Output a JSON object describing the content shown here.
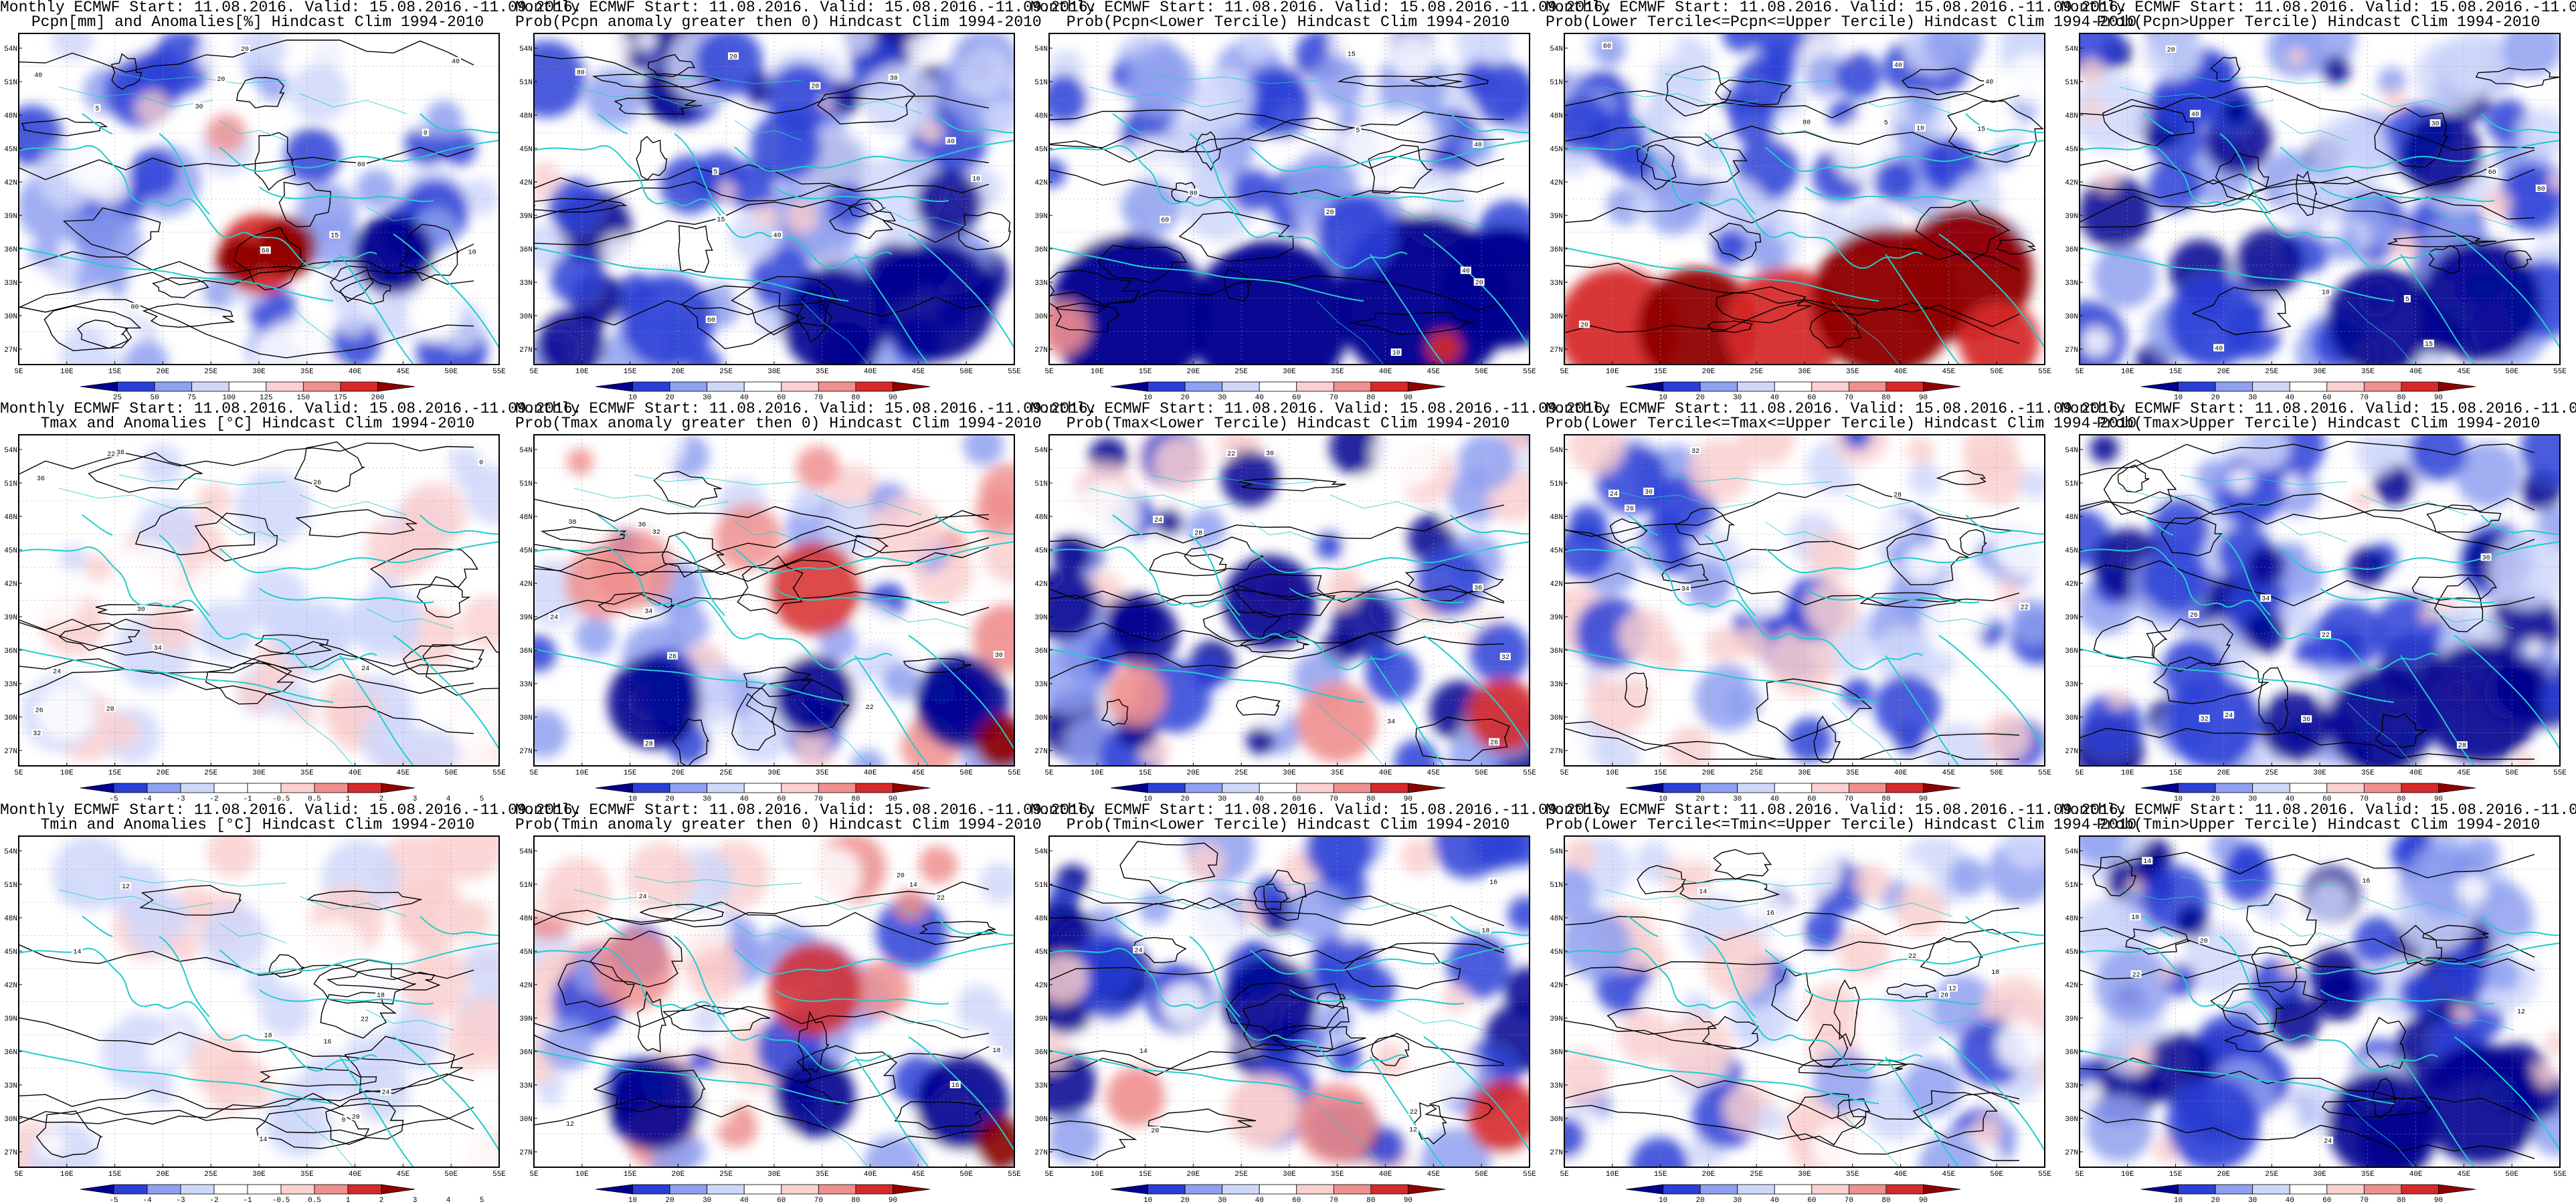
{
  "colors": {
    "blue_deep": "#00008f",
    "blue_mid": "#2a3fd6",
    "blue_light": "#8fa0f0",
    "blue_pale": "#d0d8fa",
    "white": "#ffffff",
    "red_pale": "#fad0d0",
    "red_light": "#f08f8f",
    "red_mid": "#d62a2a",
    "red_deep": "#8f0000",
    "coastline": "#22cccc",
    "contour": "#000000"
  },
  "axes": {
    "lon_ticks": [
      "5E",
      "10E",
      "15E",
      "20E",
      "25E",
      "30E",
      "35E",
      "40E",
      "45E",
      "50E",
      "55E"
    ],
    "lat_ticks": [
      "54N",
      "51N",
      "48N",
      "45N",
      "42N",
      "39N",
      "36N",
      "33N",
      "30N",
      "27N"
    ]
  },
  "colorbars": {
    "pcpn_anom": {
      "labels": [
        "25",
        "50",
        "75",
        "100",
        "125",
        "150",
        "175",
        "200"
      ]
    },
    "temp_anom": {
      "labels": [
        "-5",
        "-4",
        "-3",
        "-2",
        "-1",
        "-0.5",
        "0.5",
        "1",
        "2",
        "3",
        "4",
        "5"
      ]
    },
    "prob": {
      "labels": [
        "10",
        "20",
        "30",
        "40",
        "60",
        "70",
        "80",
        "90"
      ]
    }
  },
  "panels": [
    {
      "title1": "Monthly ECMWF Start: 11.08.2016. Valid: 15.08.2016.-11.09.2016.",
      "title2": "Pcpn[mm] and Anomalies[%] Hindcast Clim 1994-2010",
      "cbar": "pcpn_anom",
      "field": "pcpn_anom",
      "contour_labels": [
        "60",
        "20",
        "40",
        "40",
        "80",
        "10",
        "5",
        "80",
        "15",
        "20",
        "30",
        "0"
      ]
    },
    {
      "title1": "Monthly ECMWF Start: 11.08.2016. Valid: 15.08.2016.-11.09.2016.",
      "title2": "Prob(Pcpn anomaly greater then 0) Hindcast Clim 1994-2010",
      "cbar": "prob",
      "field": "prob_blue",
      "contour_labels": [
        "60",
        "20",
        "40",
        "40",
        "80",
        "10",
        "5",
        "15",
        "20",
        "30"
      ]
    },
    {
      "title1": "Monthly ECMWF Start: 11.08.2016. Valid: 15.08.2016.-11.09.2016.",
      "title2": "Prob(Pcpn<Lower Tercile) Hindcast Clim 1994-2010",
      "cbar": "prob",
      "field": "prob_blue_south",
      "contour_labels": [
        "60",
        "20",
        "40",
        "40",
        "80",
        "10",
        "5",
        "15",
        "20"
      ]
    },
    {
      "title1": "Monthly ECMWF Start: 11.08.2016. Valid: 15.08.2016.-11.09.2016.",
      "title2": "Prob(Lower Tercile<=Pcpn<=Upper Tercile) Hindcast Clim 1994-2010",
      "cbar": "prob",
      "field": "prob_red_south",
      "contour_labels": [
        "60",
        "20",
        "40",
        "40",
        "80",
        "10",
        "5",
        "15"
      ]
    },
    {
      "title1": "Monthly ECMWF Start: 11.08.2016. Valid: 15.08.2016.-11.09.2016.",
      "title2": "Prob(Pcpn>Upper Tercile) Hindcast Clim 1994-2010",
      "cbar": "prob",
      "field": "prob_blue",
      "contour_labels": [
        "60",
        "20",
        "40",
        "40",
        "80",
        "10",
        "5",
        "15",
        "30"
      ]
    },
    {
      "title1": "Monthly ECMWF Start: 11.08.2016. Valid: 15.08.2016.-11.09.2016.",
      "title2": "Tmax and Anomalies [°C] Hindcast Clim 1994-2010",
      "cbar": "temp_anom",
      "field": "temp_light",
      "contour_labels": [
        "22",
        "24",
        "26",
        "28",
        "30",
        "32",
        "34",
        "36",
        "38",
        "24",
        "26",
        "0"
      ]
    },
    {
      "title1": "Monthly ECMWF Start: 11.08.2016. Valid: 15.08.2016.-11.09.2016.",
      "title2": "Prob(Tmax anomaly greater then 0) Hindcast Clim 1994-2010",
      "cbar": "prob",
      "field": "prob_mixed",
      "contour_labels": [
        "22",
        "24",
        "26",
        "28",
        "30",
        "32",
        "34",
        "36",
        "38"
      ]
    },
    {
      "title1": "Monthly ECMWF Start: 11.08.2016. Valid: 15.08.2016.-11.09.2016.",
      "title2": "Prob(Tmax<Lower Tercile) Hindcast Clim 1994-2010",
      "cbar": "prob",
      "field": "prob_mixed_dark",
      "contour_labels": [
        "22",
        "24",
        "26",
        "28",
        "30",
        "32",
        "34",
        "36"
      ]
    },
    {
      "title1": "Monthly ECMWF Start: 11.08.2016. Valid: 15.08.2016.-11.09.2016.",
      "title2": "Prob(Lower Tercile<=Tmax<=Upper Tercile) Hindcast Clim 1994-2010",
      "cbar": "prob",
      "field": "prob_light",
      "contour_labels": [
        "22",
        "24",
        "26",
        "28",
        "30",
        "32",
        "34"
      ]
    },
    {
      "title1": "Monthly ECMWF Start: 11.08.2016. Valid: 15.08.2016.-11.09.2016.",
      "title2": "Prob(Tmax>Upper Tercile) Hindcast Clim 1994-2010",
      "cbar": "prob",
      "field": "prob_blue",
      "contour_labels": [
        "22",
        "24",
        "26",
        "28",
        "30",
        "32",
        "34",
        "36"
      ]
    },
    {
      "title1": "Monthly ECMWF Start: 11.08.2016. Valid: 15.08.2016.-11.09.2016.",
      "title2": "Tmin and Anomalies [°C] Hindcast Clim 1994-2010",
      "cbar": "temp_anom",
      "field": "temp_light",
      "contour_labels": [
        "12",
        "14",
        "16",
        "18",
        "20",
        "22",
        "24",
        "18",
        "14",
        "0"
      ]
    },
    {
      "title1": "Monthly ECMWF Start: 11.08.2016. Valid: 15.08.2016.-11.09.2016.",
      "title2": "Prob(Tmin anomaly greater then 0) Hindcast Clim 1994-2010",
      "cbar": "prob",
      "field": "prob_mixed",
      "contour_labels": [
        "12",
        "14",
        "16",
        "18",
        "20",
        "22",
        "24"
      ]
    },
    {
      "title1": "Monthly ECMWF Start: 11.08.2016. Valid: 15.08.2016.-11.09.2016.",
      "title2": "Prob(Tmin<Lower Tercile) Hindcast Clim 1994-2010",
      "cbar": "prob",
      "field": "prob_mixed_dark",
      "contour_labels": [
        "12",
        "14",
        "16",
        "18",
        "20",
        "22",
        "24"
      ]
    },
    {
      "title1": "Monthly ECMWF Start: 11.08.2016. Valid: 15.08.2016.-11.09.2016.",
      "title2": "Prob(Lower Tercile<=Tmin<=Upper Tercile) Hindcast Clim 1994-2010",
      "cbar": "prob",
      "field": "prob_light",
      "contour_labels": [
        "12",
        "14",
        "16",
        "18",
        "20",
        "22"
      ]
    },
    {
      "title1": "Monthly ECMWF Start: 11.08.2016. Valid: 15.08.2016.-11.09.2016.",
      "title2": "Prob(Tmin>Upper Tercile) Hindcast Clim 1994-2010",
      "cbar": "prob",
      "field": "prob_blue",
      "contour_labels": [
        "12",
        "14",
        "16",
        "18",
        "20",
        "22",
        "24"
      ]
    }
  ]
}
